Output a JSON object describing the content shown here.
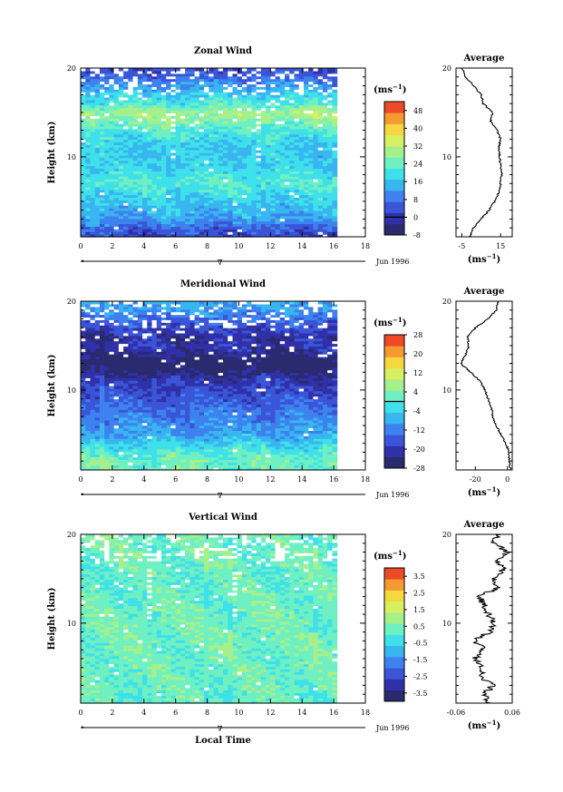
{
  "chart_data": [
    {
      "type": "heatmap",
      "title": "Zonal Wind",
      "xlabel": "",
      "ylabel": "Height (km)",
      "xlim": [
        0,
        18
      ],
      "ylim": [
        1,
        20
      ],
      "xticks": [
        "0",
        "2",
        "4",
        "6",
        "8",
        "10",
        "12",
        "14",
        "16",
        "18"
      ],
      "yticks": [
        "10",
        "20"
      ],
      "x_data_end": 16.2,
      "date_label": "Jun 1996",
      "marker": "∇",
      "colorbar": {
        "unit_base": "(ms",
        "unit_exp": "−1",
        "unit_close": ")",
        "range": [
          -8,
          52
        ],
        "ticks": [
          "-8",
          "0",
          "8",
          "16",
          "24",
          "32",
          "40",
          "48"
        ],
        "zero_line": 0
      },
      "profile_by_height": [
        [
          1,
          2
        ],
        [
          2,
          6
        ],
        [
          3,
          12
        ],
        [
          4,
          15
        ],
        [
          5,
          17
        ],
        [
          6,
          19
        ],
        [
          7,
          22
        ],
        [
          8,
          20
        ],
        [
          9,
          18
        ],
        [
          10,
          17
        ],
        [
          11,
          17
        ],
        [
          12,
          19
        ],
        [
          13,
          22
        ],
        [
          14,
          26
        ],
        [
          15,
          30
        ],
        [
          16,
          22
        ],
        [
          17,
          18
        ],
        [
          18,
          12
        ],
        [
          19,
          6
        ],
        [
          20,
          2
        ]
      ],
      "average": {
        "title": "Average",
        "xlim": [
          -8,
          21
        ],
        "xticks": [
          "-5",
          "15"
        ],
        "xlabel_base": "(ms",
        "xlabel_exp": "−1",
        "xlabel_close": ")",
        "yticks": [
          "10",
          "20"
        ],
        "profile": [
          [
            1,
            -1
          ],
          [
            2,
            1
          ],
          [
            3,
            5
          ],
          [
            4,
            9
          ],
          [
            5,
            12
          ],
          [
            6,
            14
          ],
          [
            7,
            15
          ],
          [
            8,
            15.5
          ],
          [
            9,
            15
          ],
          [
            10,
            14.5
          ],
          [
            11,
            14
          ],
          [
            12,
            15
          ],
          [
            13,
            13
          ],
          [
            14,
            10
          ],
          [
            15,
            11
          ],
          [
            16,
            6
          ],
          [
            17,
            5
          ],
          [
            18,
            1
          ],
          [
            19,
            -3
          ],
          [
            20,
            -5
          ]
        ]
      }
    },
    {
      "type": "heatmap",
      "title": "Meridional Wind",
      "xlabel": "",
      "ylabel": "Height (km)",
      "xlim": [
        0,
        18
      ],
      "ylim": [
        1,
        20
      ],
      "xticks": [
        "0",
        "2",
        "4",
        "6",
        "8",
        "10",
        "12",
        "14",
        "16",
        "18"
      ],
      "yticks": [
        "10",
        "20"
      ],
      "x_data_end": 16.2,
      "date_label": "Jun 1996",
      "marker": "∇",
      "colorbar": {
        "unit_base": "(ms",
        "unit_exp": "−1",
        "unit_close": ")",
        "range": [
          -28,
          28
        ],
        "ticks": [
          "-28",
          "-20",
          "-12",
          "-4",
          "4",
          "12",
          "20",
          "28"
        ],
        "zero_line": 0
      },
      "profile_by_height": [
        [
          1,
          2
        ],
        [
          2,
          3
        ],
        [
          3,
          0
        ],
        [
          4,
          -4
        ],
        [
          5,
          -8
        ],
        [
          6,
          -10
        ],
        [
          7,
          -12
        ],
        [
          8,
          -14
        ],
        [
          9,
          -16
        ],
        [
          10,
          -18
        ],
        [
          11,
          -20
        ],
        [
          12,
          -24
        ],
        [
          13,
          -28
        ],
        [
          14,
          -24
        ],
        [
          15,
          -20
        ],
        [
          16,
          -22
        ],
        [
          17,
          -18
        ],
        [
          18,
          -14
        ],
        [
          19,
          -10
        ],
        [
          20,
          -8
        ]
      ],
      "average": {
        "title": "Average",
        "xlim": [
          -32,
          3
        ],
        "xticks": [
          "-20",
          "0"
        ],
        "xlabel_base": "(ms",
        "xlabel_exp": "−1",
        "xlabel_close": ")",
        "yticks": [
          "10",
          "20"
        ],
        "profile": [
          [
            1,
            2
          ],
          [
            2,
            1
          ],
          [
            3,
            1
          ],
          [
            4,
            -1
          ],
          [
            5,
            -4
          ],
          [
            6,
            -7
          ],
          [
            7,
            -9
          ],
          [
            8,
            -10
          ],
          [
            9,
            -12
          ],
          [
            10,
            -14
          ],
          [
            11,
            -17
          ],
          [
            12,
            -23
          ],
          [
            13,
            -29
          ],
          [
            14,
            -26
          ],
          [
            15,
            -24
          ],
          [
            16,
            -25
          ],
          [
            17,
            -20
          ],
          [
            18,
            -12
          ],
          [
            19,
            -7
          ],
          [
            20,
            -6
          ]
        ]
      }
    },
    {
      "type": "heatmap",
      "title": "Vertical Wind",
      "xlabel": "Local Time",
      "ylabel": "Height (km)",
      "xlim": [
        0,
        18
      ],
      "ylim": [
        1,
        20
      ],
      "xticks": [
        "0",
        "2",
        "4",
        "6",
        "8",
        "10",
        "12",
        "14",
        "16",
        "18"
      ],
      "yticks": [
        "10",
        "20"
      ],
      "x_data_end": 16.2,
      "date_label": "Jun 1996",
      "marker": "∇",
      "colorbar": {
        "unit_base": "(ms",
        "unit_exp": "−1",
        "unit_close": ")",
        "range": [
          -4,
          4
        ],
        "ticks": [
          "-3.5",
          "-2.5",
          "-1.5",
          "-0.5",
          "0.5",
          "1.5",
          "2.5",
          "3.5"
        ],
        "zero_line": null
      },
      "profile_by_height": [
        [
          1,
          0.2
        ],
        [
          5,
          0.3
        ],
        [
          10,
          0.4
        ],
        [
          15,
          0.2
        ],
        [
          20,
          0.4
        ]
      ],
      "average": {
        "title": "Average",
        "xlim": [
          -0.06,
          0.06
        ],
        "xticks": [
          "-0.06",
          "0.06"
        ],
        "xlabel_base": "(ms",
        "xlabel_exp": "−1",
        "xlabel_close": ")",
        "yticks": [
          "10",
          "20"
        ],
        "profile": [
          [
            1,
            0.01
          ],
          [
            2,
            0.0
          ],
          [
            3,
            0.02
          ],
          [
            4,
            -0.01
          ],
          [
            5,
            0.0
          ],
          [
            6,
            -0.02
          ],
          [
            7,
            0.0
          ],
          [
            8,
            -0.02
          ],
          [
            9,
            0.01
          ],
          [
            10,
            0.02
          ],
          [
            11,
            0.01
          ],
          [
            12,
            0.0
          ],
          [
            13,
            -0.01
          ],
          [
            14,
            0.03
          ],
          [
            15,
            0.02
          ],
          [
            16,
            0.04
          ],
          [
            17,
            0.03
          ],
          [
            18,
            0.05
          ],
          [
            19,
            0.02
          ],
          [
            20,
            0.03
          ]
        ]
      }
    }
  ]
}
